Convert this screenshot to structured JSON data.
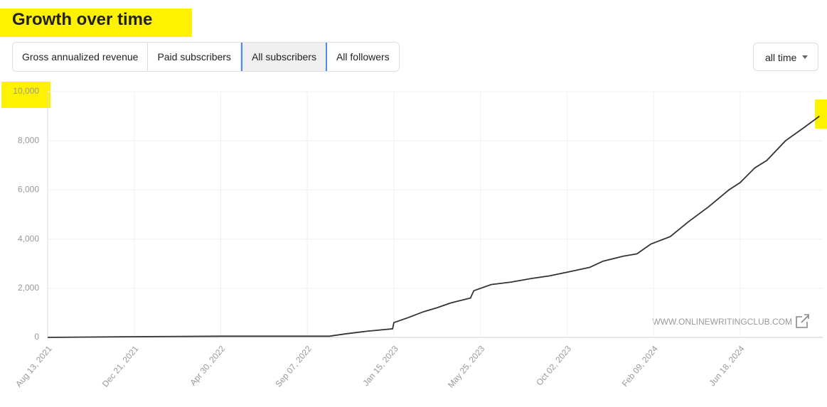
{
  "header": {
    "title": "Growth over time"
  },
  "tabs": [
    "Gross annualized revenue",
    "Paid subscribers",
    "All subscribers",
    "All followers"
  ],
  "active_tab": 2,
  "range_select": "all time",
  "watermark": "WWW.ONLINEWRITINGCLUB.COM",
  "chart_data": {
    "type": "line",
    "color": "#333333",
    "grid": true,
    "x": [
      "2021-08-13",
      "2021-12-21",
      "2022-04-30",
      "2022-09-07",
      "2022-10-10",
      "2022-11-05",
      "2022-12-05",
      "2023-01-13",
      "2023-01-15",
      "2023-02-05",
      "2023-03-01",
      "2023-03-20",
      "2023-04-10",
      "2023-05-10",
      "2023-05-15",
      "2023-06-10",
      "2023-07-10",
      "2023-08-10",
      "2023-09-05",
      "2023-10-02",
      "2023-11-05",
      "2023-11-25",
      "2023-12-25",
      "2024-01-15",
      "2024-02-05",
      "2024-03-05",
      "2024-04-01",
      "2024-05-01",
      "2024-06-01",
      "2024-06-18",
      "2024-07-10",
      "2024-07-28",
      "2024-08-25",
      "2024-09-20",
      "2024-10-15"
    ],
    "values": [
      0,
      30,
      50,
      50,
      50,
      150,
      250,
      350,
      600,
      800,
      1050,
      1200,
      1400,
      1600,
      1900,
      2150,
      2250,
      2400,
      2500,
      2650,
      2850,
      3100,
      3300,
      3400,
      3800,
      4100,
      4700,
      5300,
      6000,
      6300,
      6900,
      7200,
      8000,
      8500,
      9000
    ],
    "xlim": [
      "2021-08-13",
      "2024-10-20"
    ],
    "xticks": [
      {
        "value": "2021-08-13",
        "label": "Aug 13, 2021"
      },
      {
        "value": "2021-12-21",
        "label": "Dec 21, 2021"
      },
      {
        "value": "2022-04-30",
        "label": "Apr 30, 2022"
      },
      {
        "value": "2022-09-07",
        "label": "Sep 07, 2022"
      },
      {
        "value": "2023-01-15",
        "label": "Jan 15, 2023"
      },
      {
        "value": "2023-05-25",
        "label": "May 25, 2023"
      },
      {
        "value": "2023-10-02",
        "label": "Oct 02, 2023"
      },
      {
        "value": "2024-02-09",
        "label": "Feb 09, 2024"
      },
      {
        "value": "2024-06-18",
        "label": "Jun 18, 2024"
      }
    ],
    "ylim": [
      0,
      10000
    ],
    "yticks": [
      0,
      {
        "value": 2000,
        "label": "2,000"
      },
      {
        "value": 4000,
        "label": "4,000"
      },
      {
        "value": 6000,
        "label": "6,000"
      },
      {
        "value": 8000,
        "label": "8,000"
      },
      {
        "value": 10000,
        "label": "10,000"
      }
    ]
  }
}
